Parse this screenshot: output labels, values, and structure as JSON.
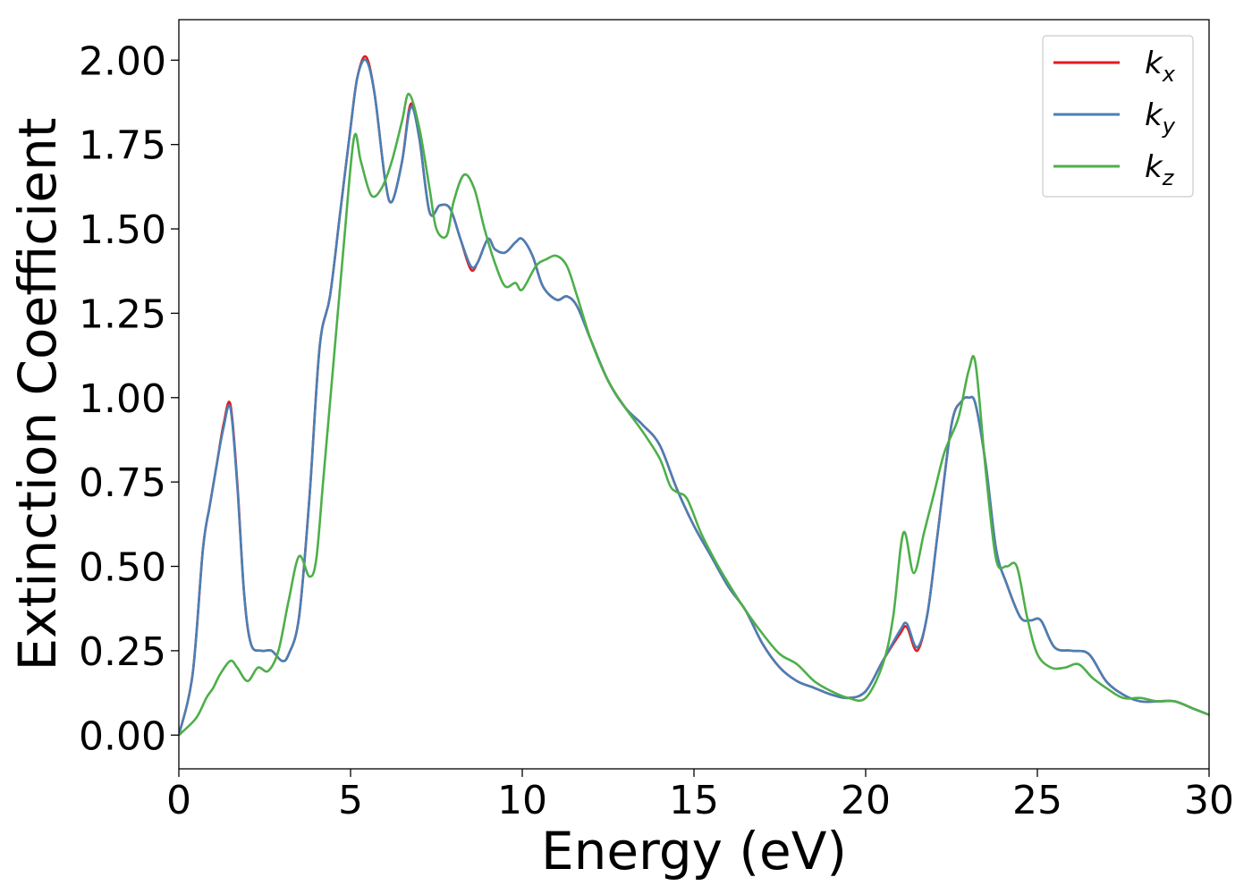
{
  "chart_data": {
    "type": "line",
    "xlabel": "Energy (eV)",
    "ylabel": "Extinction Coefficient",
    "xlim": [
      0,
      30
    ],
    "ylim": [
      -0.1,
      2.12
    ],
    "xticks": [
      0,
      5,
      10,
      15,
      20,
      25,
      30
    ],
    "xtick_labels": [
      "0",
      "5",
      "10",
      "15",
      "20",
      "25",
      "30"
    ],
    "yticks": [
      0.0,
      0.25,
      0.5,
      0.75,
      1.0,
      1.25,
      1.5,
      1.75,
      2.0
    ],
    "ytick_labels": [
      "0.00",
      "0.25",
      "0.50",
      "0.75",
      "1.00",
      "1.25",
      "1.50",
      "1.75",
      "2.00"
    ],
    "grid": false,
    "legend_position": "top-right",
    "series": [
      {
        "name": "k_x",
        "legend_main": "k",
        "legend_sub": "x",
        "color": "#e41a1c",
        "x": [
          0,
          0.4,
          0.7,
          0.9,
          1.1,
          1.3,
          1.5,
          1.7,
          1.9,
          2.1,
          2.4,
          2.7,
          3.0,
          3.2,
          3.5,
          3.8,
          4.1,
          4.4,
          4.7,
          5.0,
          5.2,
          5.45,
          5.7,
          6.0,
          6.2,
          6.5,
          6.75,
          7.0,
          7.3,
          7.6,
          7.9,
          8.2,
          8.5,
          8.7,
          9.0,
          9.2,
          9.5,
          9.8,
          10.0,
          10.3,
          10.6,
          11.0,
          11.3,
          11.6,
          12.0,
          12.5,
          13.0,
          13.5,
          14.0,
          14.5,
          15.0,
          15.5,
          16.0,
          16.5,
          17.0,
          17.5,
          18.0,
          18.5,
          19.0,
          19.5,
          20.0,
          20.5,
          21.0,
          21.2,
          21.5,
          21.8,
          22.1,
          22.5,
          22.8,
          23.0,
          23.2,
          23.5,
          23.8,
          24.1,
          24.5,
          24.8,
          25.1,
          25.5,
          26.0,
          26.5,
          27.0,
          27.5,
          28.0,
          28.5,
          29.0,
          29.5,
          30.0
        ],
        "y": [
          0.0,
          0.18,
          0.55,
          0.68,
          0.8,
          0.92,
          0.98,
          0.75,
          0.42,
          0.27,
          0.25,
          0.25,
          0.22,
          0.24,
          0.35,
          0.7,
          1.15,
          1.3,
          1.55,
          1.8,
          1.95,
          2.01,
          1.9,
          1.65,
          1.58,
          1.7,
          1.87,
          1.77,
          1.55,
          1.57,
          1.56,
          1.47,
          1.38,
          1.4,
          1.47,
          1.44,
          1.43,
          1.46,
          1.47,
          1.42,
          1.33,
          1.29,
          1.3,
          1.27,
          1.17,
          1.05,
          0.97,
          0.92,
          0.86,
          0.73,
          0.62,
          0.53,
          0.44,
          0.37,
          0.27,
          0.2,
          0.16,
          0.14,
          0.12,
          0.11,
          0.13,
          0.22,
          0.3,
          0.32,
          0.25,
          0.36,
          0.6,
          0.92,
          0.99,
          1.0,
          0.98,
          0.8,
          0.55,
          0.45,
          0.35,
          0.34,
          0.34,
          0.26,
          0.25,
          0.24,
          0.16,
          0.12,
          0.1,
          0.1,
          0.1,
          0.08,
          0.06
        ]
      },
      {
        "name": "k_y",
        "legend_main": "k",
        "legend_sub": "y",
        "color": "#4a7fb5",
        "x": [
          0,
          0.4,
          0.7,
          0.9,
          1.1,
          1.3,
          1.5,
          1.7,
          1.9,
          2.1,
          2.4,
          2.7,
          3.0,
          3.2,
          3.5,
          3.8,
          4.1,
          4.4,
          4.7,
          5.0,
          5.2,
          5.45,
          5.7,
          6.0,
          6.2,
          6.5,
          6.75,
          7.0,
          7.3,
          7.6,
          7.9,
          8.2,
          8.5,
          8.7,
          9.0,
          9.2,
          9.5,
          9.8,
          10.0,
          10.3,
          10.6,
          11.0,
          11.3,
          11.6,
          12.0,
          12.5,
          13.0,
          13.5,
          14.0,
          14.5,
          15.0,
          15.5,
          16.0,
          16.5,
          17.0,
          17.5,
          18.0,
          18.5,
          19.0,
          19.5,
          20.0,
          20.5,
          21.0,
          21.2,
          21.5,
          21.8,
          22.1,
          22.5,
          22.8,
          23.0,
          23.2,
          23.5,
          23.8,
          24.1,
          24.5,
          24.8,
          25.1,
          25.5,
          26.0,
          26.5,
          27.0,
          27.5,
          28.0,
          28.5,
          29.0,
          29.5,
          30.0
        ],
        "y": [
          0.0,
          0.18,
          0.55,
          0.68,
          0.8,
          0.91,
          0.97,
          0.74,
          0.42,
          0.27,
          0.25,
          0.25,
          0.22,
          0.24,
          0.35,
          0.7,
          1.15,
          1.3,
          1.55,
          1.8,
          1.95,
          2.0,
          1.9,
          1.65,
          1.58,
          1.7,
          1.86,
          1.77,
          1.55,
          1.57,
          1.56,
          1.47,
          1.39,
          1.4,
          1.47,
          1.44,
          1.43,
          1.46,
          1.47,
          1.42,
          1.33,
          1.29,
          1.3,
          1.27,
          1.17,
          1.05,
          0.97,
          0.92,
          0.86,
          0.73,
          0.62,
          0.53,
          0.44,
          0.37,
          0.27,
          0.2,
          0.16,
          0.14,
          0.12,
          0.11,
          0.13,
          0.22,
          0.31,
          0.33,
          0.26,
          0.36,
          0.6,
          0.92,
          0.99,
          1.0,
          0.98,
          0.8,
          0.55,
          0.45,
          0.35,
          0.34,
          0.34,
          0.26,
          0.25,
          0.24,
          0.16,
          0.12,
          0.1,
          0.1,
          0.1,
          0.08,
          0.06
        ]
      },
      {
        "name": "k_z",
        "legend_main": "k",
        "legend_sub": "z",
        "color": "#4daf4a",
        "x": [
          0,
          0.5,
          0.8,
          1.0,
          1.2,
          1.5,
          1.7,
          2.0,
          2.3,
          2.6,
          2.9,
          3.2,
          3.5,
          3.8,
          4.0,
          4.2,
          4.5,
          4.8,
          5.1,
          5.3,
          5.6,
          5.9,
          6.2,
          6.5,
          6.7,
          7.0,
          7.3,
          7.5,
          7.8,
          8.0,
          8.3,
          8.6,
          8.9,
          9.2,
          9.5,
          9.8,
          10.0,
          10.4,
          10.7,
          11.0,
          11.3,
          11.6,
          12.0,
          12.5,
          13.0,
          13.5,
          14.0,
          14.3,
          14.5,
          14.8,
          15.2,
          15.6,
          16.0,
          16.5,
          17.0,
          17.5,
          18.0,
          18.5,
          19.0,
          19.5,
          20.0,
          20.5,
          20.8,
          21.1,
          21.4,
          21.7,
          22.0,
          22.3,
          22.7,
          23.0,
          23.2,
          23.5,
          23.8,
          24.1,
          24.4,
          24.7,
          25.0,
          25.4,
          25.8,
          26.2,
          26.6,
          27.0,
          27.5,
          28.0,
          28.5,
          29.0,
          29.5,
          30.0
        ],
        "y": [
          0.0,
          0.05,
          0.11,
          0.14,
          0.18,
          0.22,
          0.2,
          0.16,
          0.2,
          0.19,
          0.25,
          0.4,
          0.53,
          0.47,
          0.52,
          0.75,
          1.1,
          1.45,
          1.77,
          1.7,
          1.6,
          1.62,
          1.7,
          1.82,
          1.9,
          1.8,
          1.62,
          1.5,
          1.48,
          1.58,
          1.66,
          1.62,
          1.5,
          1.4,
          1.33,
          1.34,
          1.32,
          1.39,
          1.41,
          1.42,
          1.39,
          1.3,
          1.17,
          1.05,
          0.97,
          0.9,
          0.82,
          0.74,
          0.72,
          0.7,
          0.6,
          0.52,
          0.45,
          0.37,
          0.3,
          0.24,
          0.21,
          0.16,
          0.13,
          0.11,
          0.11,
          0.21,
          0.35,
          0.6,
          0.48,
          0.6,
          0.72,
          0.84,
          0.94,
          1.08,
          1.1,
          0.78,
          0.52,
          0.5,
          0.5,
          0.35,
          0.24,
          0.2,
          0.2,
          0.21,
          0.17,
          0.14,
          0.11,
          0.11,
          0.1,
          0.1,
          0.08,
          0.06
        ]
      }
    ]
  }
}
